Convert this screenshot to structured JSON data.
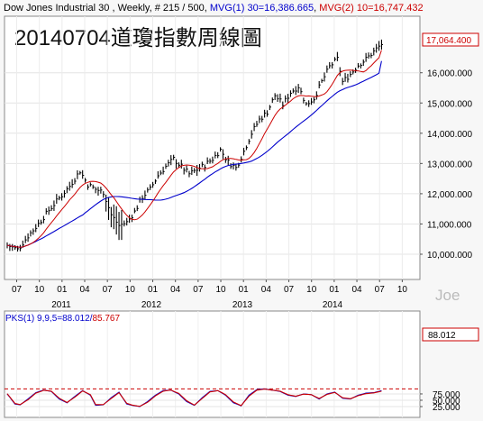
{
  "header": {
    "prefix": "Dow Jones Industrial 30 , Weekly, # 215 / 500, ",
    "mvg1": "MVG(1) 30=16,386.665",
    "mvg2": "MVG(2) 10=16,747.432",
    "colors": {
      "mvg1": "#0000cc",
      "mvg2": "#cc0000",
      "text": "#000000"
    }
  },
  "title": "20140704道瓊指數周線圖",
  "watermark": "Joe",
  "chart_data": [
    {
      "type": "ohlc-bar",
      "name": "price-panel",
      "last_price_label": "17,064.400",
      "ylim": [
        9500,
        17600
      ],
      "yticks": [
        10000,
        11000,
        12000,
        13000,
        14000,
        15000,
        16000
      ],
      "ytick_labels": [
        "10,000.000",
        "11,000.000",
        "12,000.000",
        "13,000.000",
        "14,000.000",
        "15,000.000",
        "16,000.000"
      ],
      "x_tick_labels": [
        "07",
        "10",
        "01",
        "04",
        "07",
        "10",
        "01",
        "04",
        "07",
        "10",
        "01",
        "04",
        "07",
        "10",
        "01",
        "04",
        "07",
        "10"
      ],
      "year_labels": [
        "2011",
        "2012",
        "2013",
        "2014"
      ],
      "price_anchors": [
        [
          0,
          10300
        ],
        [
          4,
          10150
        ],
        [
          8,
          10600
        ],
        [
          12,
          11000
        ],
        [
          16,
          11450
        ],
        [
          20,
          11850
        ],
        [
          24,
          12250
        ],
        [
          28,
          12750
        ],
        [
          31,
          12300
        ],
        [
          34,
          12150
        ],
        [
          37,
          12050
        ],
        [
          40,
          11300
        ],
        [
          43,
          10950
        ],
        [
          46,
          11050
        ],
        [
          49,
          11400
        ],
        [
          52,
          11900
        ],
        [
          55,
          12150
        ],
        [
          58,
          12600
        ],
        [
          61,
          12900
        ],
        [
          64,
          13150
        ],
        [
          67,
          12900
        ],
        [
          70,
          12650
        ],
        [
          73,
          12800
        ],
        [
          76,
          12950
        ],
        [
          79,
          13150
        ],
        [
          82,
          13450
        ],
        [
          85,
          13050
        ],
        [
          88,
          12850
        ],
        [
          91,
          13400
        ],
        [
          94,
          14000
        ],
        [
          97,
          14450
        ],
        [
          100,
          14700
        ],
        [
          103,
          15250
        ],
        [
          106,
          14950
        ],
        [
          109,
          15350
        ],
        [
          112,
          15550
        ],
        [
          115,
          14950
        ],
        [
          118,
          15150
        ],
        [
          121,
          15700
        ],
        [
          124,
          16200
        ],
        [
          127,
          16450
        ],
        [
          129,
          15700
        ],
        [
          132,
          15950
        ],
        [
          135,
          16250
        ],
        [
          138,
          16450
        ],
        [
          141,
          16700
        ],
        [
          144,
          16950
        ]
      ],
      "dip_weeks": [
        38,
        39,
        40,
        41,
        42,
        43,
        44
      ],
      "mvg1_period": 30,
      "mvg2_period": 10,
      "mvg1_last": 16386.665,
      "mvg2_last": 16747.432
    },
    {
      "type": "line",
      "name": "PKS(1) 9,9,5",
      "label_prefix": "PKS(1) 9,9,5=",
      "k_label": "88.012",
      "d_label": "85.767",
      "last_value_label": "88.012",
      "ylim": [
        10,
        100
      ],
      "yticks": [
        25,
        50,
        75
      ],
      "ytick_labels": [
        "25.000",
        "50.000",
        "75.000"
      ],
      "reference_line": 95,
      "series": [
        {
          "name": "K",
          "color": "#0000cc",
          "anchors": [
            [
              0,
              75
            ],
            [
              3,
              35
            ],
            [
              5,
              32
            ],
            [
              8,
              55
            ],
            [
              11,
              80
            ],
            [
              14,
              90
            ],
            [
              17,
              85
            ],
            [
              20,
              55
            ],
            [
              23,
              40
            ],
            [
              26,
              65
            ],
            [
              29,
              88
            ],
            [
              32,
              70
            ],
            [
              34,
              30
            ],
            [
              37,
              32
            ],
            [
              40,
              60
            ],
            [
              43,
              82
            ],
            [
              46,
              35
            ],
            [
              48,
              30
            ],
            [
              51,
              25
            ],
            [
              54,
              45
            ],
            [
              57,
              70
            ],
            [
              60,
              88
            ],
            [
              63,
              90
            ],
            [
              66,
              75
            ],
            [
              69,
              45
            ],
            [
              72,
              30
            ],
            [
              75,
              60
            ],
            [
              78,
              85
            ],
            [
              81,
              88
            ],
            [
              84,
              70
            ],
            [
              87,
              40
            ],
            [
              90,
              28
            ],
            [
              93,
              70
            ],
            [
              96,
              92
            ],
            [
              99,
              95
            ],
            [
              102,
              90
            ],
            [
              105,
              85
            ],
            [
              108,
              70
            ],
            [
              111,
              65
            ],
            [
              114,
              75
            ],
            [
              117,
              72
            ],
            [
              120,
              55
            ],
            [
              123,
              75
            ],
            [
              126,
              82
            ],
            [
              129,
              58
            ],
            [
              132,
              55
            ],
            [
              135,
              70
            ],
            [
              138,
              78
            ],
            [
              141,
              80
            ],
            [
              144,
              88
            ]
          ]
        },
        {
          "name": "D",
          "color": "#cc0000",
          "anchors": [
            [
              0,
              76
            ],
            [
              3,
              37
            ],
            [
              5,
              33
            ],
            [
              8,
              52
            ],
            [
              11,
              78
            ],
            [
              14,
              89
            ],
            [
              17,
              86
            ],
            [
              20,
              58
            ],
            [
              23,
              41
            ],
            [
              26,
              62
            ],
            [
              29,
              87
            ],
            [
              32,
              72
            ],
            [
              34,
              33
            ],
            [
              37,
              33
            ],
            [
              40,
              57
            ],
            [
              43,
              80
            ],
            [
              46,
              38
            ],
            [
              48,
              31
            ],
            [
              51,
              26
            ],
            [
              54,
              42
            ],
            [
              57,
              67
            ],
            [
              60,
              86
            ],
            [
              63,
              90
            ],
            [
              66,
              77
            ],
            [
              69,
              48
            ],
            [
              72,
              31
            ],
            [
              75,
              57
            ],
            [
              78,
              83
            ],
            [
              81,
              88
            ],
            [
              84,
              72
            ],
            [
              87,
              43
            ],
            [
              90,
              29
            ],
            [
              93,
              66
            ],
            [
              96,
              90
            ],
            [
              99,
              94
            ],
            [
              102,
              90
            ],
            [
              105,
              86
            ],
            [
              108,
              72
            ],
            [
              111,
              66
            ],
            [
              114,
              74
            ],
            [
              117,
              72
            ],
            [
              120,
              57
            ],
            [
              123,
              73
            ],
            [
              126,
              81
            ],
            [
              129,
              60
            ],
            [
              132,
              56
            ],
            [
              135,
              68
            ],
            [
              138,
              76
            ],
            [
              141,
              79
            ],
            [
              144,
              85.767
            ]
          ]
        }
      ]
    }
  ]
}
